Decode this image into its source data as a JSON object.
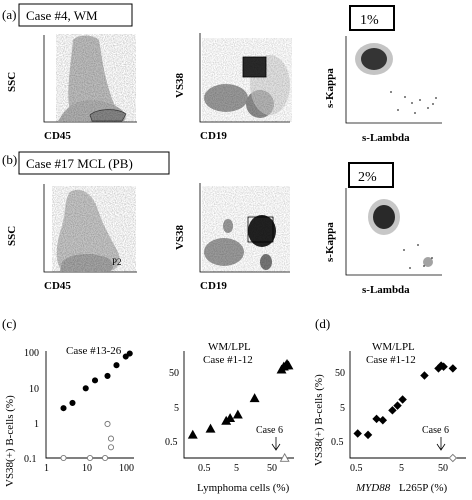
{
  "panel_a": {
    "letter": "(a)",
    "case_label": "Case #4, WM",
    "kappa_pct_label": "1%",
    "ssc_label": "SSC",
    "cd45_label": "CD45",
    "vs38_label": "VS38",
    "cd19_label": "CD19",
    "kappa_label": "s-Kappa",
    "lambda_label": "s-Lambda"
  },
  "panel_b": {
    "letter": "(b)",
    "case_label": "Case #17 MCL (PB)",
    "kappa_pct_label": "2%",
    "gate_label": "P2",
    "ssc_label": "SSC",
    "cd45_label": "CD45",
    "vs38_label": "VS38",
    "cd19_label": "CD19",
    "kappa_label": "s-Kappa",
    "lambda_label": "s-Lambda"
  },
  "panel_c": {
    "letter": "(c)"
  },
  "panel_d": {
    "letter": "(d)"
  },
  "chart_data": [
    {
      "type": "scatter",
      "title": "Case #13-26",
      "ylabel": "VS38(+) B-cells (%)",
      "xlabel": "Lymphoma cells (%)",
      "x_scale": "log",
      "y_scale": "log",
      "xlim": [
        1,
        100
      ],
      "ylim": [
        0.1,
        100
      ],
      "y_ticks": [
        "0.1",
        "1",
        "10",
        "100"
      ],
      "x_ticks": [
        "1",
        "10",
        "100"
      ],
      "series": [
        {
          "marker": "filled-circle",
          "points": [
            [
              2.5,
              2.5
            ],
            [
              4,
              3.5
            ],
            [
              8,
              9
            ],
            [
              13,
              15
            ],
            [
              25,
              20
            ],
            [
              40,
              40
            ],
            [
              65,
              70
            ],
            [
              80,
              85
            ]
          ]
        },
        {
          "marker": "open-circle",
          "points": [
            [
              2.5,
              0.1
            ],
            [
              10,
              0.1
            ],
            [
              22,
              0.1
            ],
            [
              25,
              0.9
            ],
            [
              30,
              0.35
            ],
            [
              30,
              0.2
            ]
          ]
        }
      ]
    },
    {
      "type": "scatter",
      "title": "WM/LPL\nCase #1-12",
      "xlabel": "Lymphoma cells (%)",
      "x_scale": "log",
      "y_scale": "log",
      "xlim": [
        0.5,
        80
      ],
      "ylim": [
        0.5,
        80
      ],
      "y_ticks": [
        "0.5",
        "5",
        "50"
      ],
      "x_ticks": [
        "0.5",
        "5",
        "50"
      ],
      "annotation": "Case 6",
      "series": [
        {
          "marker": "filled-triangle",
          "points": [
            [
              0.75,
              1.5
            ],
            [
              1.7,
              2.0
            ],
            [
              3.5,
              2.9
            ],
            [
              4.2,
              3.3
            ],
            [
              6.0,
              3.9
            ],
            [
              13,
              8.5
            ],
            [
              45,
              33
            ],
            [
              50,
              38
            ],
            [
              55,
              40
            ],
            [
              58,
              43
            ],
            [
              62,
              40
            ]
          ]
        },
        {
          "marker": "open-triangle",
          "points": [
            [
              52,
              0.5
            ]
          ]
        }
      ]
    },
    {
      "type": "scatter",
      "title": "WM/LPL\nCase #1-12",
      "ylabel": "VS38(+) B-cells (%)",
      "xlabel_italic": "MYD88",
      "xlabel": "L265P (%)",
      "x_scale": "log",
      "y_scale": "log",
      "xlim": [
        0.5,
        80
      ],
      "ylim": [
        0.5,
        80
      ],
      "y_ticks": [
        "0.5",
        "5",
        "50"
      ],
      "x_ticks": [
        "0.5",
        "5",
        "50"
      ],
      "annotation": "Case 6",
      "series": [
        {
          "marker": "filled-diamond",
          "points": [
            [
              0.7,
              1.6
            ],
            [
              1.1,
              1.5
            ],
            [
              1.6,
              3.2
            ],
            [
              2.1,
              3.0
            ],
            [
              3.2,
              4.8
            ],
            [
              4.0,
              6.0
            ],
            [
              5.0,
              8.0
            ],
            [
              13,
              25
            ],
            [
              24,
              35
            ],
            [
              27,
              40
            ],
            [
              30,
              38
            ],
            [
              45,
              35
            ]
          ]
        },
        {
          "marker": "open-diamond",
          "points": [
            [
              45,
              0.5
            ]
          ]
        }
      ]
    }
  ]
}
